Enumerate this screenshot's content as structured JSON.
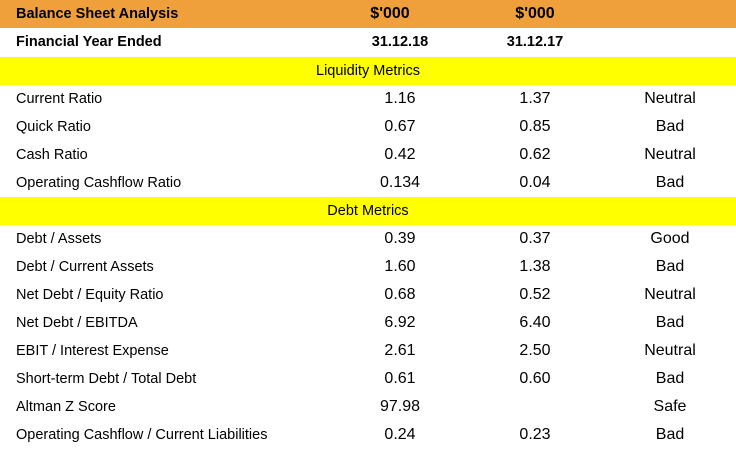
{
  "header": {
    "title": "Balance Sheet Analysis",
    "col1": "$'000",
    "col2": "$'000"
  },
  "subheader": {
    "label": "Financial Year Ended",
    "col1": "31.12.18",
    "col2": "31.12.17"
  },
  "liquidity": {
    "title": "Liquidity Metrics",
    "rows": [
      {
        "label": "Current Ratio",
        "v1": "1.16",
        "v2": "1.37",
        "status": "Neutral"
      },
      {
        "label": "Quick Ratio",
        "v1": "0.67",
        "v2": "0.85",
        "status": "Bad"
      },
      {
        "label": "Cash Ratio",
        "v1": "0.42",
        "v2": "0.62",
        "status": "Neutral"
      },
      {
        "label": "Operating Cashflow Ratio",
        "v1": "0.134",
        "v2": "0.04",
        "status": "Bad"
      }
    ]
  },
  "debt": {
    "title": "Debt Metrics",
    "rows": [
      {
        "label": "Debt / Assets",
        "v1": "0.39",
        "v2": "0.37",
        "status": "Good"
      },
      {
        "label": "Debt / Current Assets",
        "v1": "1.60",
        "v2": "1.38",
        "status": "Bad"
      },
      {
        "label": "Net Debt / Equity Ratio",
        "v1": "0.68",
        "v2": "0.52",
        "status": "Neutral"
      },
      {
        "label": "Net Debt / EBITDA",
        "v1": "6.92",
        "v2": "6.40",
        "status": "Bad"
      },
      {
        "label": "EBIT / Interest Expense",
        "v1": "2.61",
        "v2": "2.50",
        "status": "Neutral"
      },
      {
        "label": "Short-term Debt / Total Debt",
        "v1": "0.61",
        "v2": "0.60",
        "status": "Bad"
      },
      {
        "label": "Altman Z Score",
        "v1": "97.98",
        "v2": "",
        "status": "Safe"
      },
      {
        "label": "Operating Cashflow / Current Liabilities",
        "v1": "0.24",
        "v2": "0.23",
        "status": "Bad"
      }
    ]
  },
  "colors": {
    "header_bg": "#f0a03a",
    "section_bg": "#ffff00"
  }
}
